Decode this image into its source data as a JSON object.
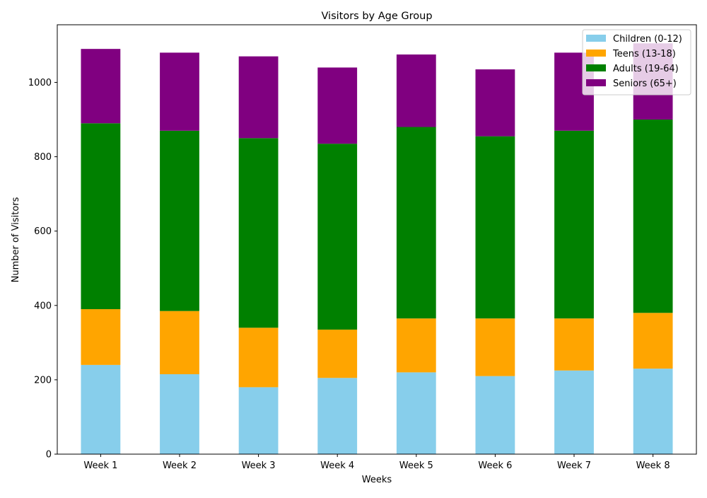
{
  "chart_data": {
    "type": "bar",
    "stacked": true,
    "title": "Visitors by Age Group",
    "xlabel": "Weeks",
    "ylabel": "Number of Visitors",
    "categories": [
      "Week 1",
      "Week 2",
      "Week 3",
      "Week 4",
      "Week 5",
      "Week 6",
      "Week 7",
      "Week 8"
    ],
    "ylim": [
      0,
      1155
    ],
    "yticks": [
      0,
      200,
      400,
      600,
      800,
      1000
    ],
    "grid": false,
    "legend_position": "top-right",
    "series": [
      {
        "name": "Children (0-12)",
        "color": "#87ceeb",
        "values": [
          240,
          215,
          180,
          205,
          220,
          210,
          225,
          230
        ]
      },
      {
        "name": "Teens (13-18)",
        "color": "#ffa500",
        "values": [
          150,
          170,
          160,
          130,
          145,
          155,
          140,
          150
        ]
      },
      {
        "name": "Adults (19-64)",
        "color": "#008000",
        "values": [
          500,
          485,
          510,
          500,
          515,
          490,
          505,
          520
        ]
      },
      {
        "name": "Seniors (65+)",
        "color": "#800080",
        "values": [
          200,
          210,
          220,
          205,
          195,
          180,
          210,
          205
        ]
      }
    ]
  }
}
